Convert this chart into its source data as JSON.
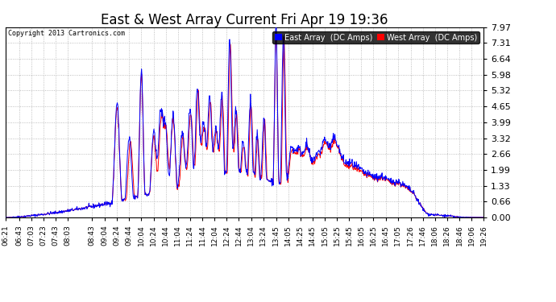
{
  "title": "East & West Array Current Fri Apr 19 19:36",
  "copyright": "Copyright 2013 Cartronics.com",
  "legend_east": "East Array  (DC Amps)",
  "legend_west": "West Array  (DC Amps)",
  "east_color": "#0000ff",
  "west_color": "#ff0000",
  "bg_color": "#ffffff",
  "plot_bg_color": "#ffffff",
  "grid_color": "#999999",
  "yticks": [
    0.0,
    0.66,
    1.33,
    1.99,
    2.66,
    3.32,
    3.99,
    4.65,
    5.32,
    5.98,
    6.64,
    7.31,
    7.97
  ],
  "ylim": [
    0.0,
    7.97
  ],
  "xtick_labels": [
    "06:21",
    "06:43",
    "07:03",
    "07:23",
    "07:43",
    "08:03",
    "08:43",
    "09:04",
    "09:24",
    "09:44",
    "10:04",
    "10:24",
    "10:44",
    "11:04",
    "11:24",
    "11:44",
    "12:04",
    "12:24",
    "12:44",
    "13:04",
    "13:24",
    "13:45",
    "14:05",
    "14:25",
    "14:45",
    "15:05",
    "15:25",
    "15:45",
    "16:05",
    "16:25",
    "16:45",
    "17:05",
    "17:26",
    "17:46",
    "18:06",
    "18:26",
    "18:46",
    "19:06",
    "19:26"
  ],
  "xlabel_fontsize": 6.5,
  "ylabel_fontsize": 8,
  "title_fontsize": 12
}
